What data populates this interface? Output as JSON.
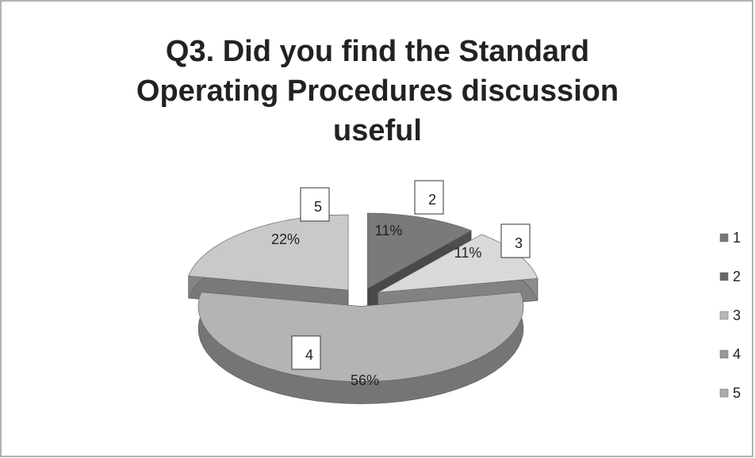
{
  "chart_data": {
    "type": "pie",
    "title": "Q3. Did you find the Standard Operating Procedures discussion useful",
    "categories": [
      "1",
      "2",
      "3",
      "4",
      "5"
    ],
    "values": [
      0,
      11,
      11,
      56,
      22
    ],
    "value_labels": [
      null,
      "11%",
      "11%",
      "56%",
      "22%"
    ],
    "colors": [
      "#8c8c8c",
      "#7a7a7a",
      "#d9d9d9",
      "#b4b4b4",
      "#c9c9c9"
    ],
    "legend": "right"
  }
}
